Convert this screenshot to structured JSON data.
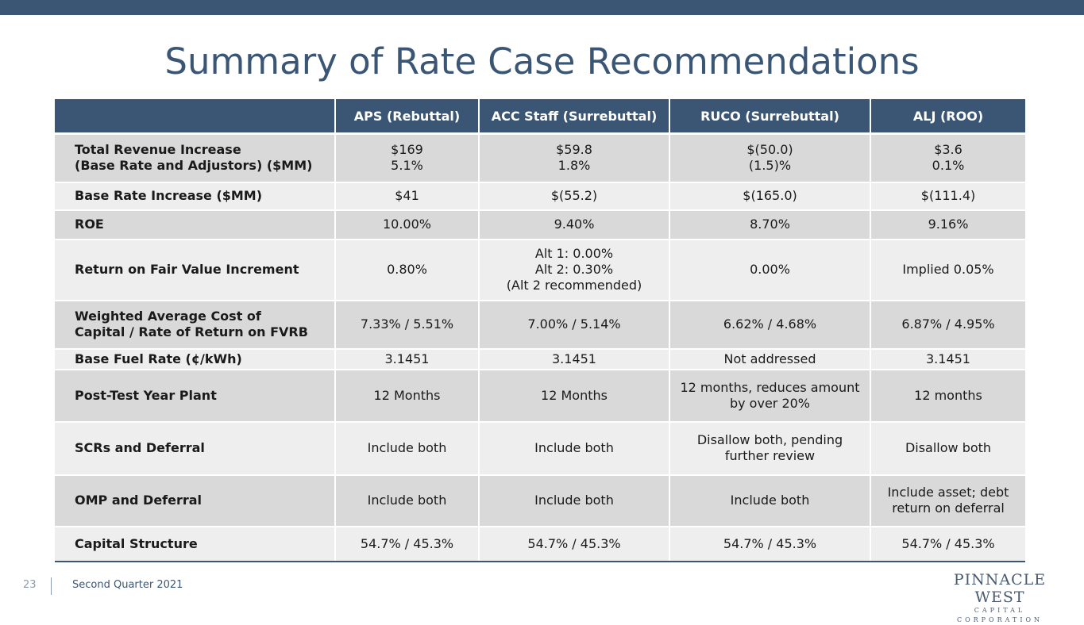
{
  "slide": {
    "title": "Summary of Rate Case Recommendations",
    "page_number": "23",
    "footer_text": "Second Quarter 2021",
    "logo": {
      "main": "PINNACLE WEST",
      "sub": "CAPITAL CORPORATION"
    },
    "colors": {
      "navy": "#3b5675",
      "row_dark": "#d9d9d9",
      "row_light": "#eeeeee"
    }
  },
  "table": {
    "headers": [
      "",
      "APS (Rebuttal)",
      "ACC Staff (Surrebuttal)",
      "RUCO (Surrebuttal)",
      "ALJ (ROO)"
    ],
    "rows": [
      {
        "label": [
          "Total Revenue Increase",
          "(Base Rate and Adjustors) ($MM)"
        ],
        "cells": [
          [
            "$169",
            "5.1%"
          ],
          [
            "$59.8",
            "1.8%"
          ],
          [
            "$(50.0)",
            "(1.5)%"
          ],
          [
            "$3.6",
            "0.1%"
          ]
        ]
      },
      {
        "label": [
          "Base Rate Increase ($MM)"
        ],
        "cells": [
          [
            "$41"
          ],
          [
            "$(55.2)"
          ],
          [
            "$(165.0)"
          ],
          [
            "$(111.4)"
          ]
        ]
      },
      {
        "label": [
          "ROE"
        ],
        "cells": [
          [
            "10.00%"
          ],
          [
            "9.40%"
          ],
          [
            "8.70%"
          ],
          [
            "9.16%"
          ]
        ]
      },
      {
        "label": [
          "Return on Fair Value Increment"
        ],
        "cells": [
          [
            "0.80%"
          ],
          [
            "Alt 1:  0.00%",
            "Alt 2:  0.30%",
            "(Alt 2 recommended)"
          ],
          [
            "0.00%"
          ],
          [
            "Implied 0.05%"
          ]
        ]
      },
      {
        "label": [
          "Weighted Average Cost of",
          "Capital / Rate of Return on FVRB"
        ],
        "cells": [
          [
            "7.33% / 5.51%"
          ],
          [
            "7.00% / 5.14%"
          ],
          [
            "6.62% / 4.68%"
          ],
          [
            "6.87% / 4.95%"
          ]
        ]
      },
      {
        "label": [
          "Base Fuel Rate (¢/kWh)"
        ],
        "cells": [
          [
            "3.1451"
          ],
          [
            "3.1451"
          ],
          [
            "Not addressed"
          ],
          [
            "3.1451"
          ]
        ]
      },
      {
        "label": [
          "Post-Test Year Plant"
        ],
        "cells": [
          [
            "12 Months"
          ],
          [
            "12 Months"
          ],
          [
            "12 months, reduces amount",
            "by over 20%"
          ],
          [
            "12 months"
          ]
        ]
      },
      {
        "label": [
          "SCRs and Deferral"
        ],
        "cells": [
          [
            "Include both"
          ],
          [
            "Include both"
          ],
          [
            "Disallow both, pending",
            "further review"
          ],
          [
            "Disallow both"
          ]
        ]
      },
      {
        "label": [
          "OMP and Deferral"
        ],
        "cells": [
          [
            "Include both"
          ],
          [
            "Include both"
          ],
          [
            "Include both"
          ],
          [
            "Include asset; debt",
            "return on deferral"
          ]
        ]
      },
      {
        "label": [
          "Capital Structure"
        ],
        "cells": [
          [
            "54.7% / 45.3%"
          ],
          [
            "54.7% / 45.3%"
          ],
          [
            "54.7% / 45.3%"
          ],
          [
            "54.7% / 45.3%"
          ]
        ]
      }
    ]
  }
}
